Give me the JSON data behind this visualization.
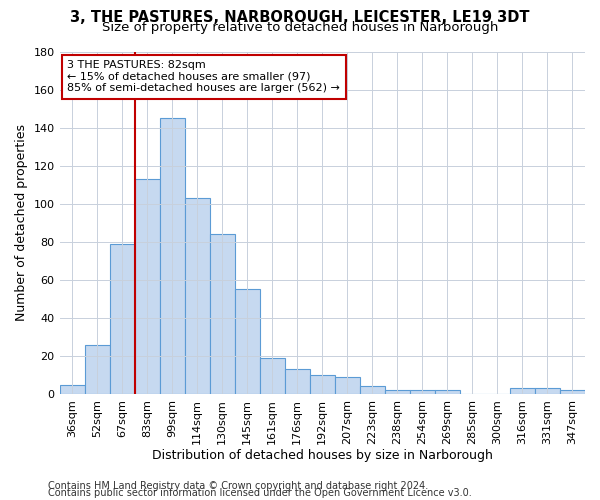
{
  "title1": "3, THE PASTURES, NARBOROUGH, LEICESTER, LE19 3DT",
  "title2": "Size of property relative to detached houses in Narborough",
  "xlabel": "Distribution of detached houses by size in Narborough",
  "ylabel": "Number of detached properties",
  "bar_labels": [
    "36sqm",
    "52sqm",
    "67sqm",
    "83sqm",
    "99sqm",
    "114sqm",
    "130sqm",
    "145sqm",
    "161sqm",
    "176sqm",
    "192sqm",
    "207sqm",
    "223sqm",
    "238sqm",
    "254sqm",
    "269sqm",
    "285sqm",
    "300sqm",
    "316sqm",
    "331sqm",
    "347sqm"
  ],
  "bar_values": [
    5,
    26,
    79,
    113,
    145,
    103,
    84,
    55,
    19,
    13,
    10,
    9,
    4,
    2,
    2,
    2,
    0,
    0,
    3,
    3,
    2
  ],
  "bar_color": "#c6d9f0",
  "bar_edge_color": "#5b9bd5",
  "vline_x_index": 3,
  "vline_color": "#c00000",
  "annotation_text": "3 THE PASTURES: 82sqm\n← 15% of detached houses are smaller (97)\n85% of semi-detached houses are larger (562) →",
  "annotation_box_color": "#ffffff",
  "annotation_box_edge": "#c00000",
  "ylim": [
    0,
    180
  ],
  "yticks": [
    0,
    20,
    40,
    60,
    80,
    100,
    120,
    140,
    160,
    180
  ],
  "footer1": "Contains HM Land Registry data © Crown copyright and database right 2024.",
  "footer2": "Contains public sector information licensed under the Open Government Licence v3.0.",
  "bg_color": "#ffffff",
  "grid_color": "#c8d0dc",
  "title1_fontsize": 10.5,
  "title2_fontsize": 9.5,
  "axis_label_fontsize": 9,
  "tick_fontsize": 8,
  "annotation_fontsize": 8,
  "footer_fontsize": 7
}
